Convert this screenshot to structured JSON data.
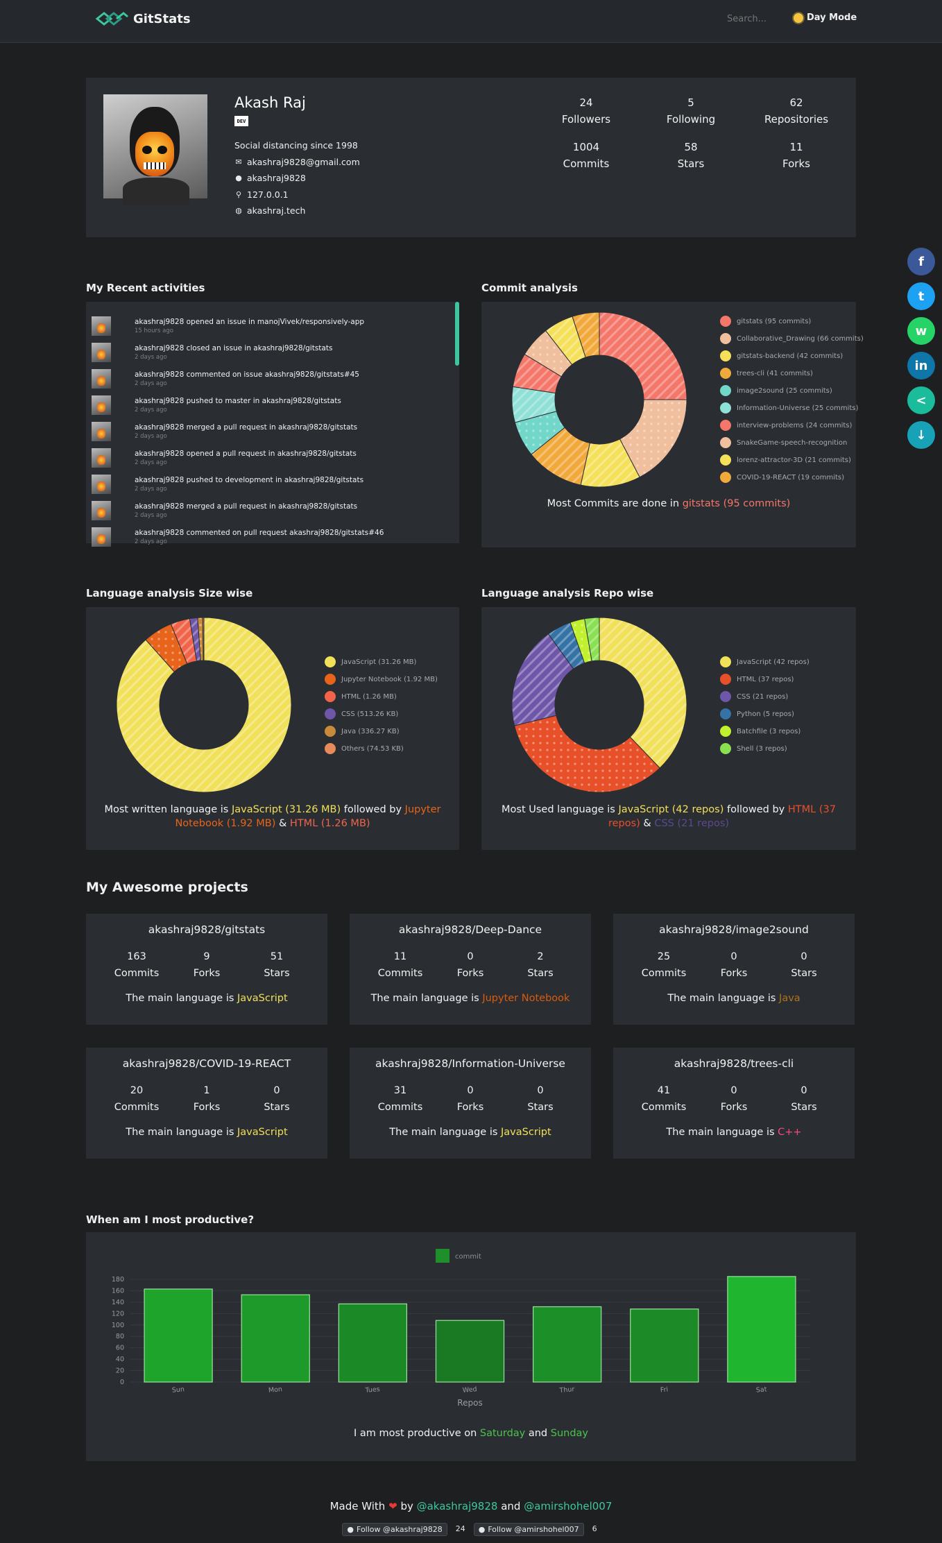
{
  "nav": {
    "brand": "GitStats",
    "search_placeholder": "Search...",
    "day_mode": "Day Mode"
  },
  "profile": {
    "name": "Akash Raj",
    "badge": "DEV",
    "bio": "Social distancing since 1998",
    "email": "akashraj9828@gmail.com",
    "github": "akashraj9828",
    "location": "127.0.0.1",
    "website": "akashraj.tech",
    "stats": [
      {
        "value": "24",
        "label": "Followers"
      },
      {
        "value": "5",
        "label": "Following"
      },
      {
        "value": "62",
        "label": "Repositories"
      },
      {
        "value": "1004",
        "label": "Commits"
      },
      {
        "value": "58",
        "label": "Stars"
      },
      {
        "value": "11",
        "label": "Forks"
      }
    ]
  },
  "activities": {
    "title": "My Recent activities",
    "items": [
      {
        "text": "akashraj9828 opened an issue in manojVivek/responsively-app",
        "time": "15 hours ago"
      },
      {
        "text": "akashraj9828 closed an issue in akashraj9828/gitstats",
        "time": "2 days ago"
      },
      {
        "text": "akashraj9828 commented on issue akashraj9828/gitstats#45",
        "time": "2 days ago"
      },
      {
        "text": "akashraj9828 pushed to master in akashraj9828/gitstats",
        "time": "2 days ago"
      },
      {
        "text": "akashraj9828 merged a pull request in akashraj9828/gitstats",
        "time": "2 days ago"
      },
      {
        "text": "akashraj9828 opened a pull request in akashraj9828/gitstats",
        "time": "2 days ago"
      },
      {
        "text": "akashraj9828 pushed to development in akashraj9828/gitstats",
        "time": "2 days ago"
      },
      {
        "text": "akashraj9828 merged a pull request in akashraj9828/gitstats",
        "time": "2 days ago"
      },
      {
        "text": "akashraj9828 commented on pull request akashraj9828/gitstats#46",
        "time": "2 days ago"
      }
    ]
  },
  "commit_summary": {
    "prefix": "Most Commits are done in ",
    "highlight": "gitstats (95 commits)"
  },
  "size_summary": {
    "prefix": "Most written language is ",
    "lang1": "JavaScript (31.26 MB)",
    "mid": " followed by ",
    "lang2": "Jupyter Notebook (1.92 MB)",
    "amp": " & ",
    "lang3": "HTML (1.26 MB)"
  },
  "repo_summary": {
    "prefix": "Most Used language is ",
    "lang1": "JavaScript (42 repos)",
    "mid": " followed by ",
    "lang2": "HTML (37 repos)",
    "amp": " & ",
    "lang3": "CSS (21 repos)"
  },
  "projects": {
    "title": "My Awesome projects",
    "lang_prefix": "The main language is ",
    "labels": {
      "commits": "Commits",
      "forks": "Forks",
      "stars": "Stars"
    },
    "items": [
      {
        "name": "akashraj9828/gitstats",
        "commits": "163",
        "forks": "9",
        "stars": "51",
        "lang": "JavaScript",
        "lang_color": "#f1e05a"
      },
      {
        "name": "akashraj9828/Deep-Dance",
        "commits": "11",
        "forks": "0",
        "stars": "2",
        "lang": "Jupyter Notebook",
        "lang_color": "#DA5B0B"
      },
      {
        "name": "akashraj9828/image2sound",
        "commits": "25",
        "forks": "0",
        "stars": "0",
        "lang": "Java",
        "lang_color": "#b07219"
      },
      {
        "name": "akashraj9828/COVID-19-REACT",
        "commits": "20",
        "forks": "1",
        "stars": "0",
        "lang": "JavaScript",
        "lang_color": "#f1e05a"
      },
      {
        "name": "akashraj9828/Information-Universe",
        "commits": "31",
        "forks": "0",
        "stars": "0",
        "lang": "JavaScript",
        "lang_color": "#f1e05a"
      },
      {
        "name": "akashraj9828/trees-cli",
        "commits": "41",
        "forks": "0",
        "stars": "0",
        "lang": "C++",
        "lang_color": "#f34b7d"
      }
    ]
  },
  "productive_summary": {
    "prefix": "I am most productive on ",
    "day1": "Saturday",
    "and": " and ",
    "day2": "Sunday"
  },
  "footer": {
    "made_with": "Made With",
    "by": " by ",
    "user1": "@akashraj9828",
    "and": " and ",
    "user2": "@amirshohel007",
    "follow1": "Follow @akashraj9828",
    "count1": "24",
    "follow2": "Follow @amirshohel007",
    "count2": "6"
  },
  "chart_data": [
    {
      "type": "pie",
      "title": "Commit analysis",
      "labels": [
        "gitstats (95 commits)",
        "Collaborative_Drawing (66 commits)",
        "gitstats-backend (42 commits)",
        "trees-cli (41 commits)",
        "image2sound (25 commits)",
        "Information-Universe (25 commits)",
        "interview-problems (24 commits)",
        "SnakeGame-speech-recognition",
        "lorenz-attractor-3D (21 commits)",
        "COVID-19-REACT (19 commits)"
      ],
      "values": [
        95,
        66,
        42,
        41,
        25,
        25,
        24,
        22,
        21,
        19
      ],
      "colors": [
        "#f4776a",
        "#f0bf9d",
        "#f5e05a",
        "#f2a93b",
        "#72d6c9",
        "#8fe0d6",
        "#f4776a",
        "#f0bf9d",
        "#f5e05a",
        "#f2a93b"
      ]
    },
    {
      "type": "pie",
      "title": "Language analysis Size wise",
      "labels": [
        "JavaScript (31.26 MB)",
        "Jupyter Notebook (1.92 MB)",
        "HTML (1.26 MB)",
        "CSS (513.26 KB)",
        "Java (336.27 KB)",
        "Others (74.53 KB)"
      ],
      "values": [
        31.26,
        1.92,
        1.26,
        0.513,
        0.336,
        0.0745
      ],
      "colors": [
        "#f1e05a",
        "#e8641a",
        "#f0654a",
        "#6e56a8",
        "#c98a3c",
        "#e88a5a"
      ]
    },
    {
      "type": "pie",
      "title": "Language analysis Repo wise",
      "labels": [
        "JavaScript (42 repos)",
        "HTML (37 repos)",
        "CSS (21 repos)",
        "Python (5 repos)",
        "Batchfile (3 repos)",
        "Shell (3 repos)"
      ],
      "values": [
        42,
        37,
        21,
        5,
        3,
        3
      ],
      "colors": [
        "#f1e05a",
        "#e8502a",
        "#6e56a8",
        "#3572a5",
        "#c1f12e",
        "#89e051"
      ]
    },
    {
      "type": "bar",
      "title": "When am I most productive?",
      "legend": "commit",
      "xlabel": "Repos",
      "categories": [
        "Sun",
        "Mon",
        "Tues",
        "Wed",
        "Thur",
        "Fri",
        "Sat"
      ],
      "values": [
        163,
        153,
        137,
        108,
        132,
        128,
        185
      ],
      "ylim": [
        0,
        180
      ],
      "yticks": [
        0,
        20,
        40,
        60,
        80,
        100,
        120,
        140,
        160,
        180
      ]
    }
  ],
  "sections": {
    "commit_title": "Commit analysis",
    "size_title": "Language analysis Size wise",
    "repo_title": "Language analysis Repo wise",
    "productive_title": "When am I most productive?"
  },
  "share": [
    {
      "name": "facebook",
      "glyph": "f",
      "color": "#3b5998"
    },
    {
      "name": "twitter",
      "glyph": "t",
      "color": "#1da1f2"
    },
    {
      "name": "whatsapp",
      "glyph": "w",
      "color": "#25d366"
    },
    {
      "name": "linkedin",
      "glyph": "in",
      "color": "#0e76a8"
    },
    {
      "name": "share",
      "glyph": "<",
      "color": "#1abc9c"
    },
    {
      "name": "download",
      "glyph": "↓",
      "color": "#17a2b8"
    }
  ]
}
